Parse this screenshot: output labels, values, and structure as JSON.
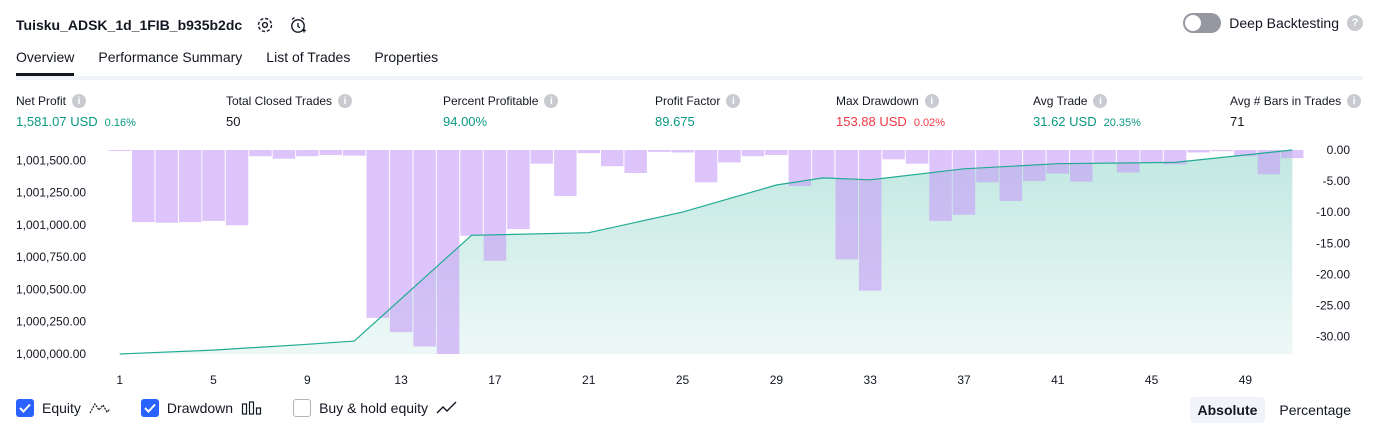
{
  "strategy_title": "Tuisku_ADSK_1d_1FIB_b935b2dc",
  "icons": {
    "settings": "gear-icon",
    "alert": "alarm-clock-icon"
  },
  "deep_backtesting": {
    "label": "Deep Backtesting",
    "enabled": false,
    "help": "?"
  },
  "tabs": [
    {
      "label": "Overview",
      "active": true
    },
    {
      "label": "Performance Summary",
      "active": false
    },
    {
      "label": "List of Trades",
      "active": false
    },
    {
      "label": "Properties",
      "active": false
    }
  ],
  "info_glyph": "i",
  "metrics": [
    {
      "label": "Net Profit",
      "value": "1,581.07 USD",
      "sub": "0.16%",
      "tone": "green"
    },
    {
      "label": "Total Closed Trades",
      "value": "50",
      "sub": "",
      "tone": "dark"
    },
    {
      "label": "Percent Profitable",
      "value": "94.00%",
      "sub": "",
      "tone": "green"
    },
    {
      "label": "Profit Factor",
      "value": "89.675",
      "sub": "",
      "tone": "green"
    },
    {
      "label": "Max Drawdown",
      "value": "153.88 USD",
      "sub": "0.02%",
      "tone": "red"
    },
    {
      "label": "Avg Trade",
      "value": "31.62 USD",
      "sub": "20.35%",
      "tone": "green"
    },
    {
      "label": "Avg # Bars in Trades",
      "value": "71",
      "sub": "",
      "tone": "dark"
    }
  ],
  "colors": {
    "equity_line": "#22ab94",
    "equity_fill": "#22ab94",
    "drawdown_bar": "#c69cf7",
    "checkbox": "#2962ff",
    "positive": "#089981",
    "negative": "#f23645"
  },
  "chart_data": {
    "type": "area",
    "x_label_ticks": [
      "1",
      "5",
      "9",
      "13",
      "17",
      "21",
      "25",
      "29",
      "33",
      "37",
      "41",
      "45",
      "49"
    ],
    "left_axis": {
      "ticks": [
        "1,001,500.00",
        "1,001,250.00",
        "1,001,000.00",
        "1,000,750.00",
        "1,000,500.00",
        "1,000,250.00",
        "1,000,000.00"
      ],
      "ylim": [
        1000000,
        1001581.07
      ]
    },
    "right_axis": {
      "ticks": [
        "0.00",
        "-5.00",
        "-10.00",
        "-15.00",
        "-20.00",
        "-25.00",
        "-30.00"
      ],
      "ylim": [
        -32.8,
        0
      ]
    },
    "series": [
      {
        "name": "Equity",
        "x": [
          1,
          5,
          9,
          11,
          16,
          21,
          25,
          29,
          31,
          33,
          37,
          41,
          46,
          51
        ],
        "values": [
          1000000,
          1000030,
          1000075,
          1000100,
          1000920,
          1000940,
          1001100,
          1001310,
          1001365,
          1001350,
          1001435,
          1001475,
          1001485,
          1001581.07
        ]
      },
      {
        "name": "Drawdown",
        "x": [
          1,
          2,
          3,
          4,
          5,
          6,
          7,
          8,
          9,
          10,
          11,
          12,
          13,
          14,
          15,
          16,
          17,
          18,
          19,
          20,
          21,
          22,
          23,
          24,
          25,
          26,
          27,
          28,
          29,
          30,
          31,
          32,
          33,
          34,
          35,
          36,
          37,
          38,
          39,
          40,
          41,
          42,
          43,
          44,
          45,
          46,
          47,
          48,
          49,
          50,
          51
        ],
        "values": [
          -0.1,
          -11.6,
          -11.7,
          -11.6,
          -11.4,
          -12.1,
          -1.0,
          -1.4,
          -1.0,
          -0.8,
          -0.9,
          -27.0,
          -29.3,
          -31.6,
          -32.8,
          -13.8,
          -17.8,
          -12.7,
          -2.2,
          -7.4,
          -0.5,
          -2.6,
          -3.7,
          -0.3,
          -0.4,
          -5.2,
          -2.0,
          -1.0,
          -0.8,
          -5.8,
          -4.6,
          -17.6,
          -22.6,
          -1.5,
          -2.2,
          -11.4,
          -10.4,
          -5.2,
          -8.2,
          -5.0,
          -3.8,
          -5.1,
          -2.1,
          -3.6,
          -2.0,
          -2.3,
          -0.4,
          -0.2,
          -1.0,
          -3.9,
          -1.3
        ]
      }
    ]
  },
  "footer": {
    "toggles": [
      {
        "label": "Equity",
        "checked": true,
        "icon": "equity-line-icon"
      },
      {
        "label": "Drawdown",
        "checked": true,
        "icon": "drawdown-bars-icon"
      },
      {
        "label": "Buy & hold equity",
        "checked": false,
        "icon": "buy-hold-line-icon"
      }
    ],
    "modes": [
      {
        "label": "Absolute",
        "active": true
      },
      {
        "label": "Percentage",
        "active": false
      }
    ]
  }
}
